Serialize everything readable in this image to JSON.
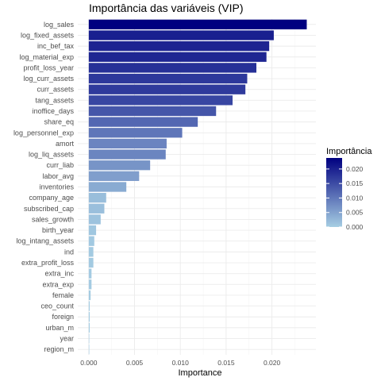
{
  "chart_data": {
    "type": "bar",
    "orientation": "horizontal",
    "title": "Importância das variáveis (VIP)",
    "xlabel": "Importance",
    "ylabel": "",
    "xlim": [
      -0.0012,
      0.0248
    ],
    "x_ticks": [
      0.0,
      0.005,
      0.01,
      0.015,
      0.02
    ],
    "x_tick_labels": [
      "0.000",
      "0.005",
      "0.010",
      "0.015",
      "0.020"
    ],
    "grid": true,
    "categories": [
      "log_sales",
      "log_fixed_assets",
      "inc_bef_tax",
      "log_material_exp",
      "profit_loss_year",
      "log_curr_assets",
      "curr_assets",
      "tang_assets",
      "inoffice_days",
      "share_eq",
      "log_personnel_exp",
      "amort",
      "log_liq_assets",
      "curr_liab",
      "labor_avg",
      "inventories",
      "company_age",
      "subscribed_cap",
      "sales_growth",
      "birth_year",
      "log_intang_assets",
      "ind",
      "extra_profit_loss",
      "extra_inc",
      "extra_exp",
      "female",
      "ceo_count",
      "foreign",
      "urban_m",
      "year",
      "region_m"
    ],
    "values": [
      0.0238,
      0.0202,
      0.0197,
      0.0194,
      0.0183,
      0.0173,
      0.0171,
      0.0157,
      0.0139,
      0.0119,
      0.0102,
      0.0085,
      0.0084,
      0.0067,
      0.0055,
      0.0041,
      0.0019,
      0.0017,
      0.0013,
      0.0008,
      0.0006,
      0.0005,
      0.0005,
      0.0003,
      0.0003,
      0.0002,
      0.0001,
      0.0001,
      0.0001,
      0.0,
      5e-05
    ],
    "legend": {
      "title": "Importância",
      "position": "right",
      "range": [
        0.0,
        0.0238
      ],
      "ticks": [
        0.0,
        0.005,
        0.01,
        0.015,
        0.02
      ],
      "tick_labels": [
        "0.000",
        "0.005",
        "0.010",
        "0.015",
        "0.020"
      ],
      "color_low": "#a6cee3",
      "color_high": "#000080"
    }
  }
}
